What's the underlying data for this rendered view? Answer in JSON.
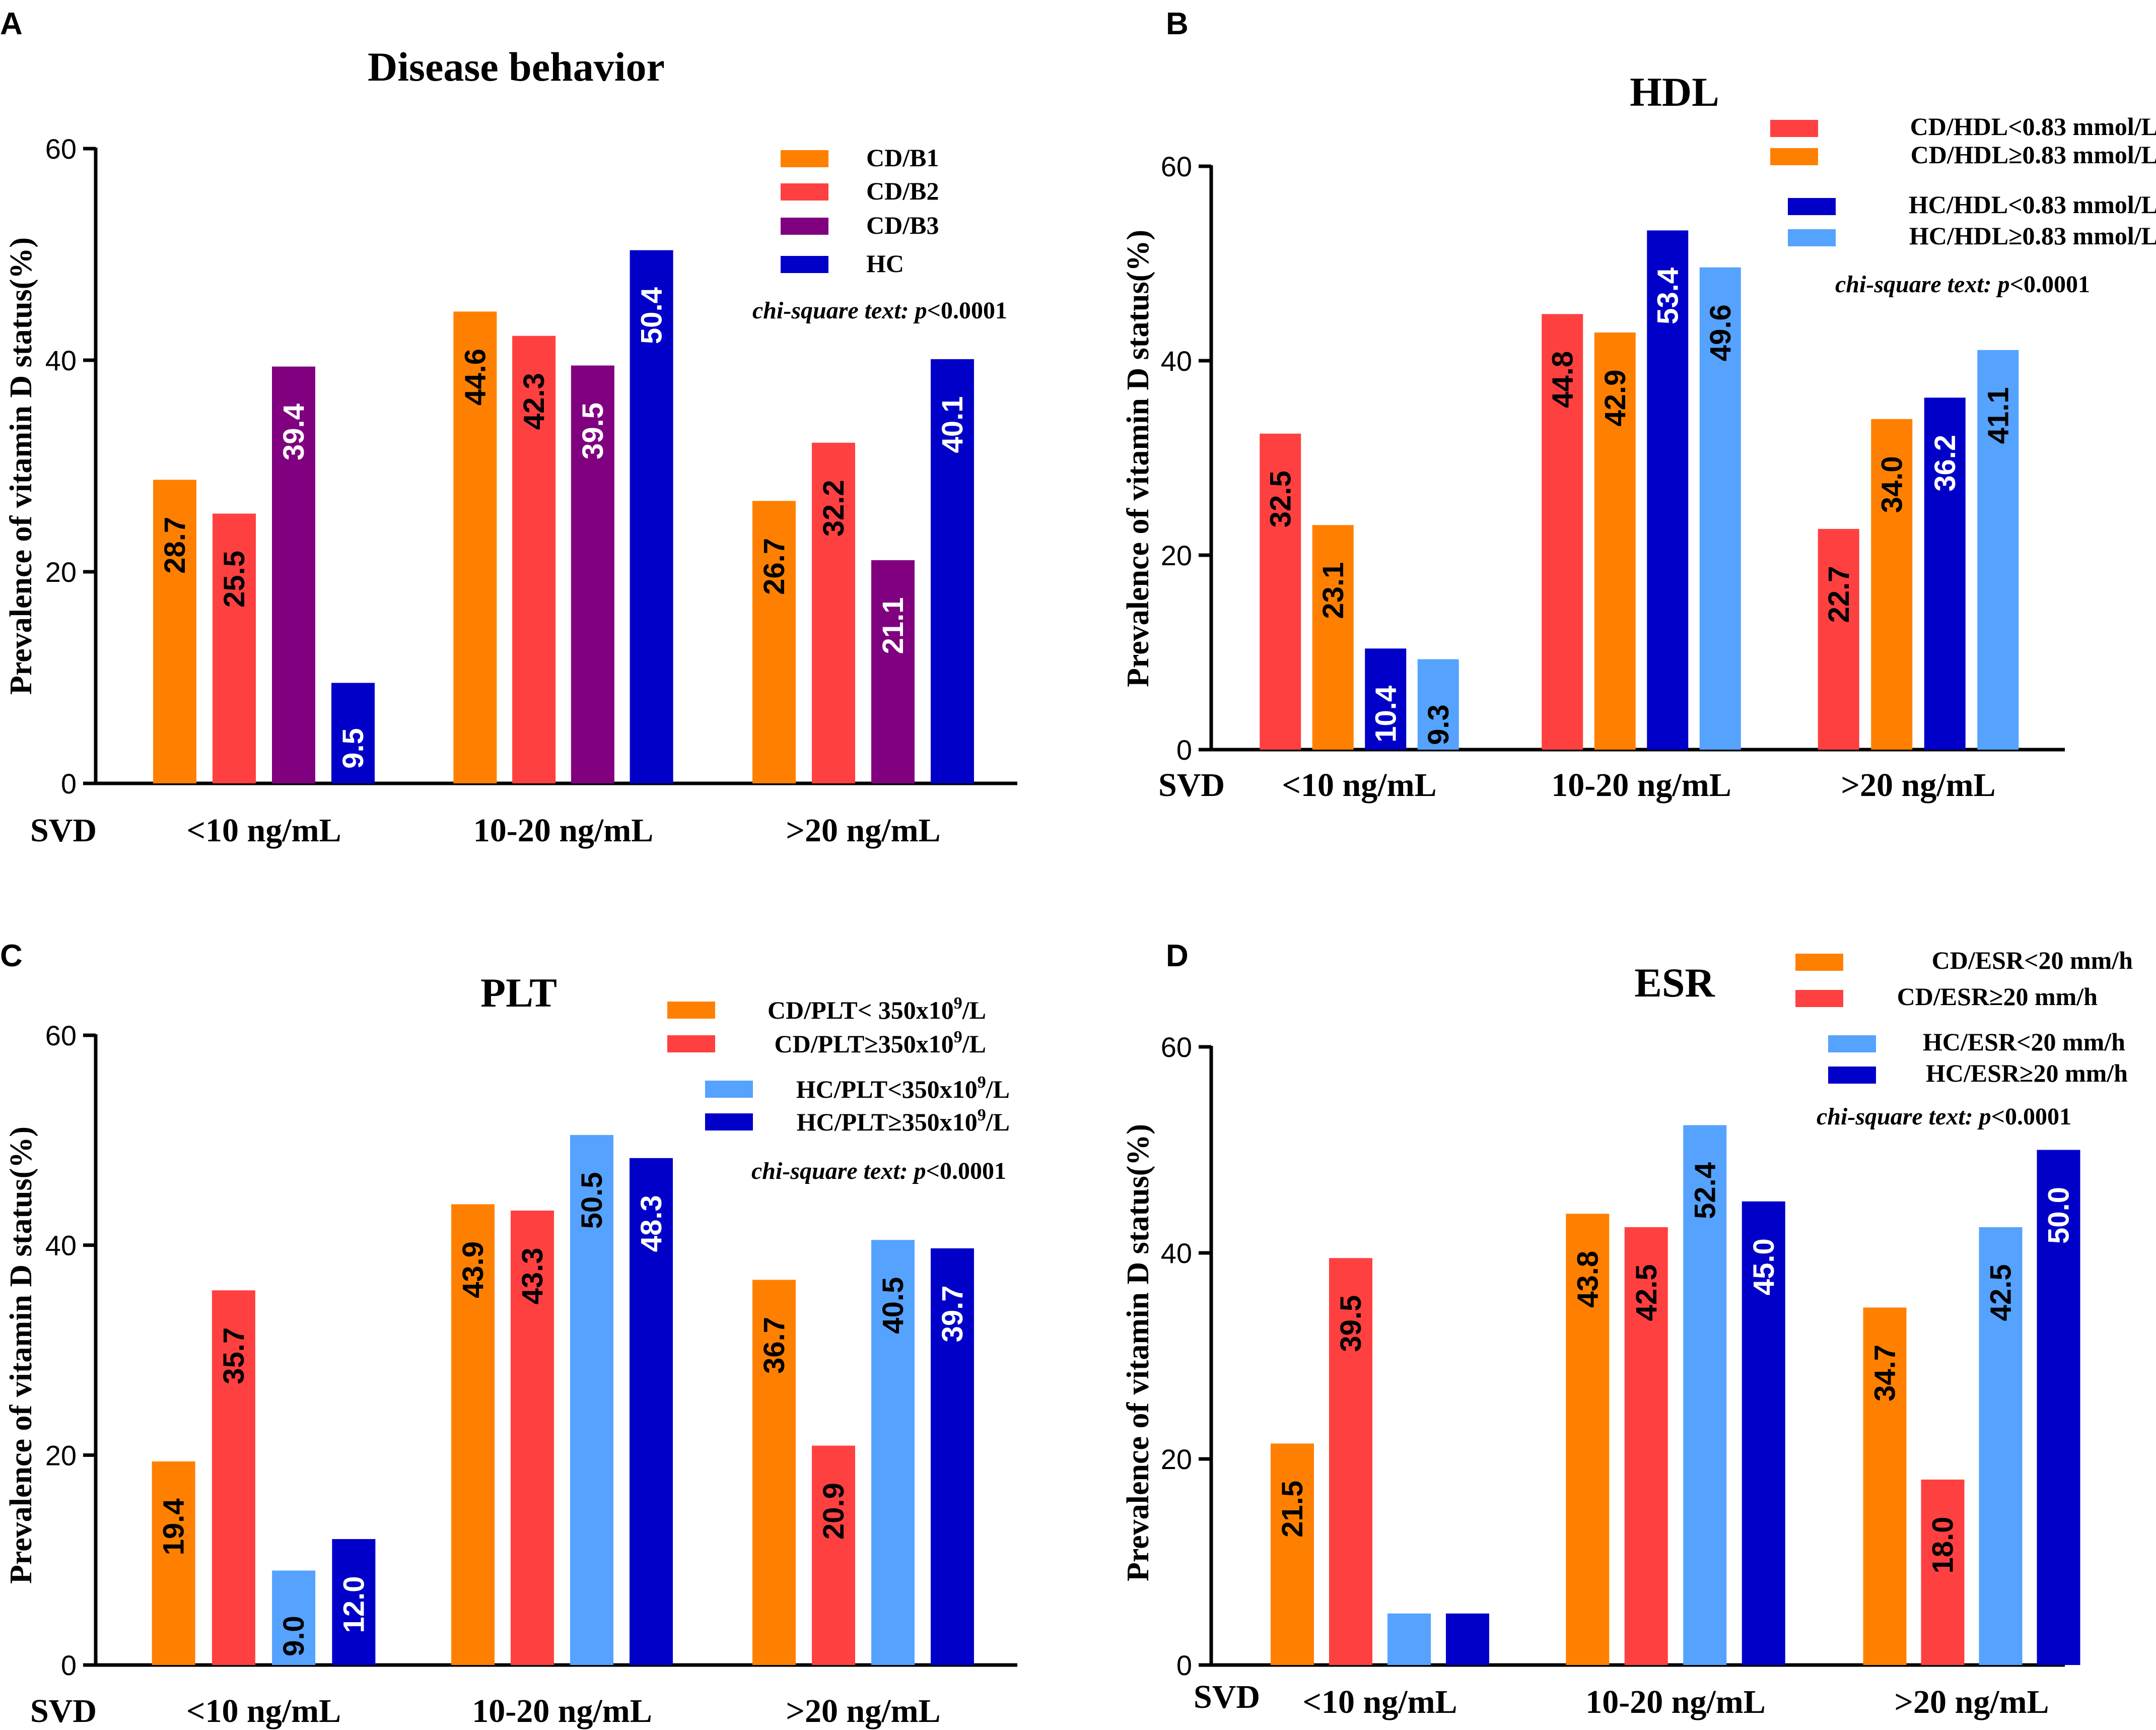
{
  "figure": {
    "panels": [
      {
        "label": "A",
        "key": "A"
      },
      {
        "label": "B",
        "key": "B"
      },
      {
        "label": "C",
        "key": "C"
      },
      {
        "label": "D",
        "key": "D"
      }
    ]
  },
  "chart_data": [
    {
      "panel": "A",
      "type": "bar",
      "title": "Disease behavior",
      "ylabel": "Prevalence of vitamin D status(%)",
      "xprefix": "SVD",
      "categories": [
        "<10 ng/mL",
        "10-20 ng/mL",
        ">20 ng/mL"
      ],
      "ylim": [
        0,
        60
      ],
      "yticks": [
        "0",
        "20",
        "40",
        "60"
      ],
      "series": [
        {
          "name": "CD/B1",
          "color": "#FF8000",
          "values": [
            "28.7",
            "44.6",
            "26.7"
          ],
          "label_color": "#000000"
        },
        {
          "name": "CD/B2",
          "color": "#FF4040",
          "values": [
            "25.5",
            "42.3",
            "32.2"
          ],
          "label_color": "#000000"
        },
        {
          "name": "CD/B3",
          "color": "#800080",
          "values": [
            "39.4",
            "39.5",
            "21.1"
          ],
          "label_color": "#ffffff"
        },
        {
          "name": "HC",
          "color": "#0000C8",
          "values": [
            "9.5",
            "50.4",
            "40.1"
          ],
          "label_color": "#ffffff"
        }
      ],
      "annotation": {
        "italic": "chi-square text: p",
        "rest": "<0.0001"
      }
    },
    {
      "panel": "B",
      "type": "bar",
      "title": "HDL",
      "ylabel": "Prevalence of vitamin D status(%)",
      "xprefix": "SVD",
      "categories": [
        "<10 ng/mL",
        "10-20 ng/mL",
        ">20 ng/mL"
      ],
      "ylim": [
        0,
        60
      ],
      "yticks": [
        "0",
        "20",
        "40",
        "60"
      ],
      "series": [
        {
          "name": "CD/HDL<0.83 mmol/L",
          "color": "#FF4040",
          "values": [
            "32.5",
            "44.8",
            "22.7"
          ],
          "label_color": "#000000"
        },
        {
          "name": "CD/HDL≥0.83 mmol/L",
          "color": "#FF8000",
          "values": [
            "23.1",
            "42.9",
            "34.0"
          ],
          "label_color": "#000000"
        },
        {
          "name": "HC/HDL<0.83 mmol/L",
          "color": "#0000C8",
          "values": [
            "10.4",
            "53.4",
            "36.2"
          ],
          "label_color": "#ffffff"
        },
        {
          "name": "HC/HDL≥0.83 mmol/L",
          "color": "#55A2FF",
          "values": [
            "9.3",
            "49.6",
            "41.1"
          ],
          "label_color": "#000000"
        }
      ],
      "annotation": {
        "italic": "chi-square text: p",
        "rest": "<0.0001"
      }
    },
    {
      "panel": "C",
      "type": "bar",
      "title": "PLT",
      "ylabel": "Prevalence of vitamin D status(%)",
      "xprefix": "SVD",
      "categories": [
        "<10 ng/mL",
        "10-20 ng/mL",
        ">20 ng/mL"
      ],
      "ylim": [
        0,
        60
      ],
      "yticks": [
        "0",
        "20",
        "40",
        "60"
      ],
      "series": [
        {
          "name": "CD/PLT< 350x10",
          "sup": "9",
          "tail": "/L",
          "color": "#FF8000",
          "values": [
            "19.4",
            "43.9",
            "36.7"
          ],
          "label_color": "#000000"
        },
        {
          "name": "CD/PLT≥350x10",
          "sup": "9",
          "tail": "/L",
          "color": "#FF4040",
          "values": [
            "35.7",
            "43.3",
            "20.9"
          ],
          "label_color": "#000000"
        },
        {
          "name": "HC/PLT<350x10",
          "sup": "9",
          "tail": "/L",
          "color": "#55A2FF",
          "values": [
            "9.0",
            "50.5",
            "40.5"
          ],
          "label_color": "#000000"
        },
        {
          "name": "HC/PLT≥350x10",
          "sup": "9",
          "tail": "/L",
          "color": "#0000C8",
          "values": [
            "12.0",
            "48.3",
            "39.7"
          ],
          "label_color": "#ffffff"
        }
      ],
      "annotation": {
        "italic": "chi-square text: p",
        "rest": "<0.0001"
      }
    },
    {
      "panel": "D",
      "type": "bar",
      "title": "ESR",
      "ylabel": "Prevalence of vitamin D status(%)",
      "xprefix": "SVD",
      "categories": [
        "<10 ng/mL",
        "10-20 ng/mL",
        ">20 ng/mL"
      ],
      "ylim": [
        0,
        60
      ],
      "yticks": [
        "0",
        "20",
        "40",
        "60"
      ],
      "series": [
        {
          "name": "CD/ESR<20 mm/h",
          "color": "#FF8000",
          "values": [
            "21.5",
            "43.8",
            "34.7"
          ],
          "label_color": "#000000"
        },
        {
          "name": "CD/ESR≥20 mm/h",
          "color": "#FF4040",
          "values": [
            "39.5",
            "42.5",
            "18.0"
          ],
          "label_color": "#000000"
        },
        {
          "name": "HC/ESR<20 mm/h",
          "color": "#55A2FF",
          "values": [
            "5.0",
            "52.4",
            "42.5"
          ],
          "label_color": "#000000",
          "hidden_labels": [
            0
          ]
        },
        {
          "name": "HC/ESR≥20 mm/h",
          "color": "#0000C8",
          "values": [
            "5.0",
            "45.0",
            "50.0"
          ],
          "label_color": "#ffffff",
          "hidden_labels": [
            0
          ]
        }
      ],
      "annotation": {
        "italic": "chi-square text: p",
        "rest": "<0.0001"
      }
    }
  ]
}
